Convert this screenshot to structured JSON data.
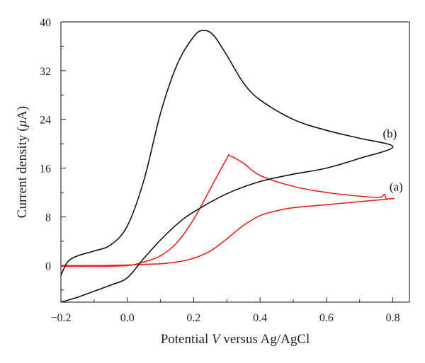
{
  "chart_data": {
    "type": "line",
    "title": "",
    "xlabel": {
      "prefix": "Potential ",
      "var": "V",
      "suffix": " versus Ag/AgCl"
    },
    "ylabel": {
      "prefix": "Current density (",
      "unit": "μ",
      "suffix": "A)"
    },
    "xlim": [
      -0.2,
      0.85
    ],
    "ylim": [
      -6,
      40
    ],
    "xticks": [
      -0.2,
      0.0,
      0.2,
      0.4,
      0.6,
      0.8
    ],
    "xtick_labels": [
      "−0.2",
      "0.0",
      "0.2",
      "0.4",
      "0.6",
      "0.8"
    ],
    "yticks": [
      0,
      8,
      16,
      24,
      32,
      40
    ],
    "ytick_labels": [
      "0",
      "8",
      "16",
      "24",
      "32",
      "40"
    ],
    "grid": false,
    "series": [
      {
        "name": "(a)",
        "color": "#e8221b",
        "points": [
          [
            -0.2,
            -0.1
          ],
          [
            -0.1,
            -0.1
          ],
          [
            0.0,
            0.0
          ],
          [
            0.05,
            0.6
          ],
          [
            0.1,
            1.6
          ],
          [
            0.15,
            3.8
          ],
          [
            0.2,
            7.6
          ],
          [
            0.25,
            12.6
          ],
          [
            0.3,
            17.6
          ],
          [
            0.31,
            18.0
          ],
          [
            0.35,
            16.8
          ],
          [
            0.4,
            14.8
          ],
          [
            0.5,
            13.0
          ],
          [
            0.6,
            12.0
          ],
          [
            0.7,
            11.4
          ],
          [
            0.76,
            11.2
          ],
          [
            0.775,
            11.7
          ],
          [
            0.78,
            11.0
          ],
          [
            0.8,
            11.0
          ],
          [
            0.7,
            10.5
          ],
          [
            0.6,
            10.0
          ],
          [
            0.5,
            9.5
          ],
          [
            0.45,
            9.0
          ],
          [
            0.4,
            8.2
          ],
          [
            0.35,
            6.6
          ],
          [
            0.3,
            4.4
          ],
          [
            0.25,
            2.4
          ],
          [
            0.2,
            1.2
          ],
          [
            0.15,
            0.6
          ],
          [
            0.1,
            0.3
          ],
          [
            0.05,
            0.2
          ],
          [
            0.0,
            0.1
          ],
          [
            -0.1,
            0.0
          ],
          [
            -0.2,
            0.0
          ]
        ]
      },
      {
        "name": "(b)",
        "color": "#111111",
        "points": [
          [
            -0.2,
            -1.6
          ],
          [
            -0.18,
            0.6
          ],
          [
            -0.15,
            1.6
          ],
          [
            -0.1,
            2.4
          ],
          [
            -0.05,
            3.4
          ],
          [
            0.0,
            6.5
          ],
          [
            0.05,
            14.0
          ],
          [
            0.1,
            25.0
          ],
          [
            0.15,
            33.0
          ],
          [
            0.2,
            37.6
          ],
          [
            0.23,
            38.6
          ],
          [
            0.26,
            37.8
          ],
          [
            0.3,
            34.5
          ],
          [
            0.35,
            30.0
          ],
          [
            0.4,
            27.2
          ],
          [
            0.5,
            24.0
          ],
          [
            0.6,
            22.2
          ],
          [
            0.7,
            20.9
          ],
          [
            0.8,
            19.5
          ],
          [
            0.7,
            17.6
          ],
          [
            0.6,
            16.0
          ],
          [
            0.5,
            15.0
          ],
          [
            0.4,
            13.8
          ],
          [
            0.3,
            11.8
          ],
          [
            0.2,
            8.8
          ],
          [
            0.15,
            6.8
          ],
          [
            0.1,
            4.2
          ],
          [
            0.05,
            1.2
          ],
          [
            0.0,
            -2.0
          ],
          [
            -0.05,
            -3.2
          ],
          [
            -0.1,
            -4.2
          ],
          [
            -0.15,
            -5.2
          ],
          [
            -0.2,
            -6.0
          ]
        ]
      }
    ],
    "annotations": [
      {
        "text": "(b)",
        "x": 0.77,
        "y": 21.0
      },
      {
        "text": "(a)",
        "x": 0.79,
        "y": 12.3
      }
    ]
  }
}
